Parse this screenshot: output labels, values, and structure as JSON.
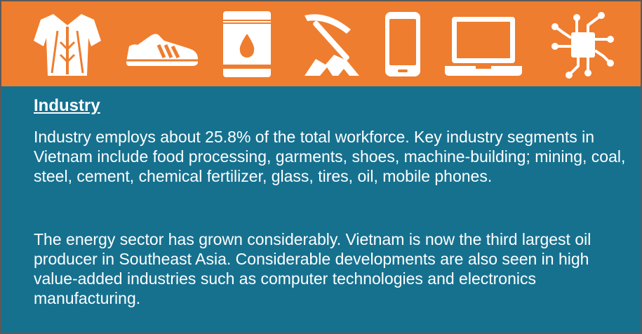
{
  "colors": {
    "banner": "#ee7d2f",
    "panel": "#16718f",
    "icon": "#ffffff",
    "text": "#ffffff"
  },
  "icons": [
    "shirt-icon",
    "sneaker-icon",
    "oil-barrel-icon",
    "mining-pickaxe-icon",
    "mobile-phone-icon",
    "laptop-icon",
    "circuit-chip-icon"
  ],
  "section": {
    "heading": "Industry",
    "paragraph_1": "Industry employs about 25.8% of the total workforce. Key industry segments in Vietnam include food processing, garments, shoes, machine-building; mining, coal, steel, cement, chemical fertilizer, glass, tires, oil, mobile phones.",
    "paragraph_2": "The energy sector has grown considerably. Vietnam is now the third largest oil producer in Southeast Asia. Considerable developments are also seen in high value-added industries such as computer technologies and electronics manufacturing."
  }
}
